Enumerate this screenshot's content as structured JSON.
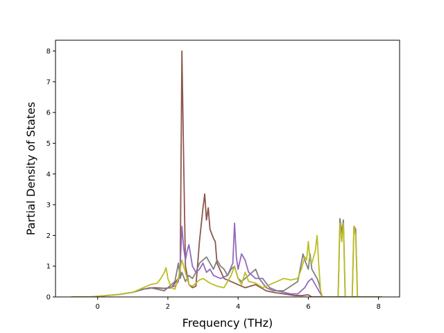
{
  "chart_data": {
    "type": "line",
    "title": "",
    "xlabel": "Frequency (THz)",
    "ylabel": "Partial Density of States",
    "xlim": [
      -1.2,
      8.6
    ],
    "ylim": [
      0,
      8.35
    ],
    "xticks": [
      0,
      2,
      4,
      6,
      8
    ],
    "yticks": [
      0,
      1,
      2,
      3,
      4,
      5,
      6,
      7,
      8
    ],
    "grid": false,
    "legend": "none",
    "series": [
      {
        "color": "#8c564b",
        "points": [
          [
            -0.75,
            0
          ],
          [
            -0.2,
            0
          ],
          [
            0,
            0.02
          ],
          [
            0.6,
            0.08
          ],
          [
            1.0,
            0.15
          ],
          [
            1.3,
            0.25
          ],
          [
            1.6,
            0.3
          ],
          [
            1.9,
            0.28
          ],
          [
            2.1,
            0.3
          ],
          [
            2.2,
            0.45
          ],
          [
            2.3,
            0.6
          ],
          [
            2.35,
            0.7
          ],
          [
            2.4,
            8.0
          ],
          [
            2.45,
            4.5
          ],
          [
            2.5,
            1.0
          ],
          [
            2.6,
            0.4
          ],
          [
            2.7,
            0.3
          ],
          [
            2.8,
            0.35
          ],
          [
            2.9,
            1.8
          ],
          [
            3.0,
            2.9
          ],
          [
            3.05,
            3.35
          ],
          [
            3.1,
            2.5
          ],
          [
            3.15,
            2.9
          ],
          [
            3.2,
            2.2
          ],
          [
            3.3,
            1.9
          ],
          [
            3.35,
            1.8
          ],
          [
            3.4,
            1.1
          ],
          [
            3.6,
            0.6
          ],
          [
            3.8,
            0.5
          ],
          [
            4.0,
            0.4
          ],
          [
            4.2,
            0.3
          ],
          [
            4.5,
            0.4
          ],
          [
            4.8,
            0.2
          ],
          [
            5.0,
            0.15
          ],
          [
            5.3,
            0.1
          ],
          [
            5.6,
            0.05
          ],
          [
            5.8,
            0.04
          ],
          [
            6.0,
            0.07
          ],
          [
            6.1,
            0.0
          ],
          [
            6.3,
            0
          ],
          [
            8.1,
            0
          ]
        ]
      },
      {
        "color": "#9467bd",
        "points": [
          [
            -0.75,
            0
          ],
          [
            -0.2,
            0
          ],
          [
            0,
            0.02
          ],
          [
            0.6,
            0.08
          ],
          [
            1.0,
            0.15
          ],
          [
            1.3,
            0.25
          ],
          [
            1.5,
            0.3
          ],
          [
            1.7,
            0.25
          ],
          [
            1.9,
            0.2
          ],
          [
            2.0,
            0.3
          ],
          [
            2.2,
            0.35
          ],
          [
            2.3,
            0.5
          ],
          [
            2.35,
            1.0
          ],
          [
            2.4,
            2.3
          ],
          [
            2.45,
            1.6
          ],
          [
            2.5,
            1.2
          ],
          [
            2.55,
            1.5
          ],
          [
            2.6,
            1.7
          ],
          [
            2.7,
            1.0
          ],
          [
            2.8,
            0.8
          ],
          [
            2.9,
            0.9
          ],
          [
            3.0,
            1.1
          ],
          [
            3.1,
            0.8
          ],
          [
            3.2,
            0.9
          ],
          [
            3.3,
            0.7
          ],
          [
            3.5,
            0.6
          ],
          [
            3.7,
            0.7
          ],
          [
            3.85,
            1.1
          ],
          [
            3.9,
            2.4
          ],
          [
            3.95,
            1.3
          ],
          [
            4.0,
            0.9
          ],
          [
            4.1,
            1.4
          ],
          [
            4.2,
            1.2
          ],
          [
            4.3,
            0.8
          ],
          [
            4.5,
            0.6
          ],
          [
            4.7,
            0.6
          ],
          [
            4.9,
            0.3
          ],
          [
            5.1,
            0.2
          ],
          [
            5.3,
            0.15
          ],
          [
            5.5,
            0.1
          ],
          [
            5.7,
            0.1
          ],
          [
            5.9,
            0.3
          ],
          [
            6.0,
            0.5
          ],
          [
            6.1,
            0.6
          ],
          [
            6.2,
            0.4
          ],
          [
            6.3,
            0.2
          ],
          [
            6.4,
            0
          ],
          [
            8.1,
            0
          ]
        ]
      },
      {
        "color": "#7f7f7f",
        "points": [
          [
            -0.75,
            0
          ],
          [
            -0.2,
            0
          ],
          [
            0,
            0.02
          ],
          [
            0.6,
            0.08
          ],
          [
            1.0,
            0.15
          ],
          [
            1.3,
            0.25
          ],
          [
            1.5,
            0.3
          ],
          [
            1.7,
            0.25
          ],
          [
            1.9,
            0.2
          ],
          [
            2.0,
            0.3
          ],
          [
            2.2,
            0.5
          ],
          [
            2.3,
            1.1
          ],
          [
            2.35,
            0.6
          ],
          [
            2.4,
            0.8
          ],
          [
            2.5,
            0.5
          ],
          [
            2.6,
            0.7
          ],
          [
            2.7,
            0.6
          ],
          [
            2.8,
            0.8
          ],
          [
            2.9,
            1.1
          ],
          [
            3.0,
            1.2
          ],
          [
            3.1,
            1.3
          ],
          [
            3.2,
            1.1
          ],
          [
            3.3,
            0.9
          ],
          [
            3.4,
            1.2
          ],
          [
            3.5,
            1.0
          ],
          [
            3.6,
            0.9
          ],
          [
            3.7,
            0.7
          ],
          [
            3.8,
            0.9
          ],
          [
            3.9,
            1.0
          ],
          [
            4.0,
            0.6
          ],
          [
            4.1,
            0.5
          ],
          [
            4.3,
            0.7
          ],
          [
            4.5,
            0.9
          ],
          [
            4.6,
            0.6
          ],
          [
            4.8,
            0.3
          ],
          [
            5.0,
            0.2
          ],
          [
            5.3,
            0.2
          ],
          [
            5.5,
            0.35
          ],
          [
            5.7,
            0.5
          ],
          [
            5.8,
            1.1
          ],
          [
            5.85,
            1.4
          ],
          [
            5.9,
            1.2
          ],
          [
            6.0,
            0.9
          ],
          [
            6.05,
            1.4
          ],
          [
            6.1,
            0.9
          ],
          [
            6.2,
            0.7
          ],
          [
            6.25,
            0.6
          ],
          [
            6.3,
            0.45
          ],
          [
            6.35,
            0.2
          ],
          [
            6.4,
            0
          ],
          [
            6.85,
            0
          ],
          [
            6.9,
            2.55
          ],
          [
            6.95,
            2.1
          ],
          [
            7.0,
            2.5
          ],
          [
            7.05,
            0
          ],
          [
            7.25,
            0
          ],
          [
            7.3,
            2.3
          ],
          [
            7.35,
            2.2
          ],
          [
            7.4,
            0
          ],
          [
            8.1,
            0
          ]
        ]
      },
      {
        "color": "#bcbd22",
        "points": [
          [
            -0.75,
            0
          ],
          [
            -0.2,
            0
          ],
          [
            0,
            0.02
          ],
          [
            0.6,
            0.08
          ],
          [
            1.0,
            0.15
          ],
          [
            1.3,
            0.3
          ],
          [
            1.5,
            0.4
          ],
          [
            1.7,
            0.45
          ],
          [
            1.8,
            0.6
          ],
          [
            1.9,
            0.8
          ],
          [
            1.95,
            0.95
          ],
          [
            2.0,
            0.6
          ],
          [
            2.1,
            0.3
          ],
          [
            2.2,
            0.25
          ],
          [
            2.3,
            0.6
          ],
          [
            2.4,
            1.2
          ],
          [
            2.45,
            1.0
          ],
          [
            2.5,
            0.8
          ],
          [
            2.6,
            0.4
          ],
          [
            2.7,
            0.35
          ],
          [
            2.8,
            0.45
          ],
          [
            2.9,
            0.55
          ],
          [
            3.0,
            0.6
          ],
          [
            3.2,
            0.45
          ],
          [
            3.4,
            0.35
          ],
          [
            3.6,
            0.3
          ],
          [
            3.8,
            0.7
          ],
          [
            3.9,
            1.0
          ],
          [
            4.0,
            0.6
          ],
          [
            4.1,
            0.4
          ],
          [
            4.2,
            0.8
          ],
          [
            4.3,
            0.5
          ],
          [
            4.5,
            0.45
          ],
          [
            4.7,
            0.3
          ],
          [
            4.9,
            0.4
          ],
          [
            5.1,
            0.5
          ],
          [
            5.3,
            0.6
          ],
          [
            5.5,
            0.55
          ],
          [
            5.7,
            0.6
          ],
          [
            5.8,
            0.9
          ],
          [
            5.85,
            1.1
          ],
          [
            5.9,
            1.3
          ],
          [
            5.95,
            1.2
          ],
          [
            6.0,
            1.8
          ],
          [
            6.05,
            1.2
          ],
          [
            6.1,
            1.1
          ],
          [
            6.2,
            1.5
          ],
          [
            6.25,
            2.0
          ],
          [
            6.3,
            1.0
          ],
          [
            6.35,
            0.2
          ],
          [
            6.4,
            0
          ],
          [
            6.85,
            0
          ],
          [
            6.9,
            2.4
          ],
          [
            6.95,
            1.8
          ],
          [
            7.0,
            2.4
          ],
          [
            7.05,
            0
          ],
          [
            7.25,
            0
          ],
          [
            7.3,
            2.3
          ],
          [
            7.35,
            2.0
          ],
          [
            7.4,
            0
          ],
          [
            8.1,
            0
          ]
        ]
      }
    ]
  }
}
